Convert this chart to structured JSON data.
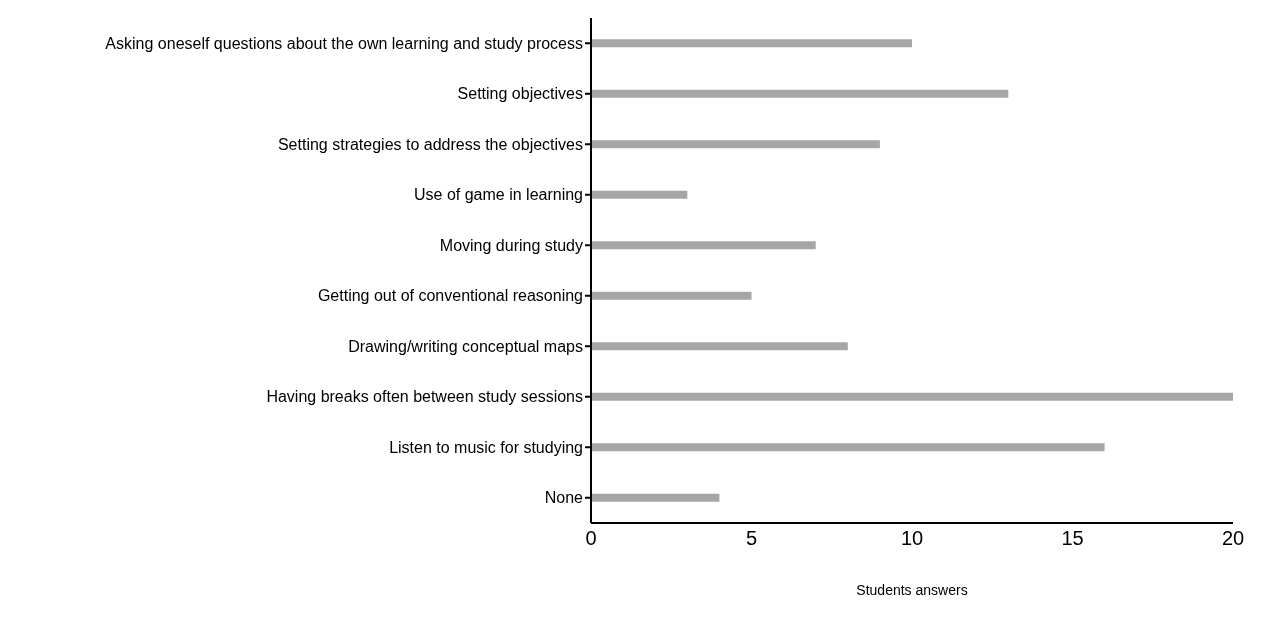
{
  "chart_data": {
    "type": "bar",
    "orientation": "horizontal",
    "categories": [
      "Asking oneself questions about the own learning and study process",
      "Setting objectives",
      "Setting strategies to address the objectives",
      "Use of game in learning",
      "Moving during study",
      "Getting out of conventional reasoning",
      "Drawing/writing conceptual maps",
      "Having breaks often between study sessions",
      "Listen to music for studying",
      "None"
    ],
    "values": [
      10,
      13,
      9,
      3,
      7,
      5,
      8,
      20,
      16,
      4
    ],
    "color": "#a6a6a6",
    "xlim": [
      0,
      20
    ],
    "xticks": [
      0,
      5,
      10,
      15,
      20
    ],
    "xlabel": "Students answers",
    "grid": false,
    "legend": false
  }
}
